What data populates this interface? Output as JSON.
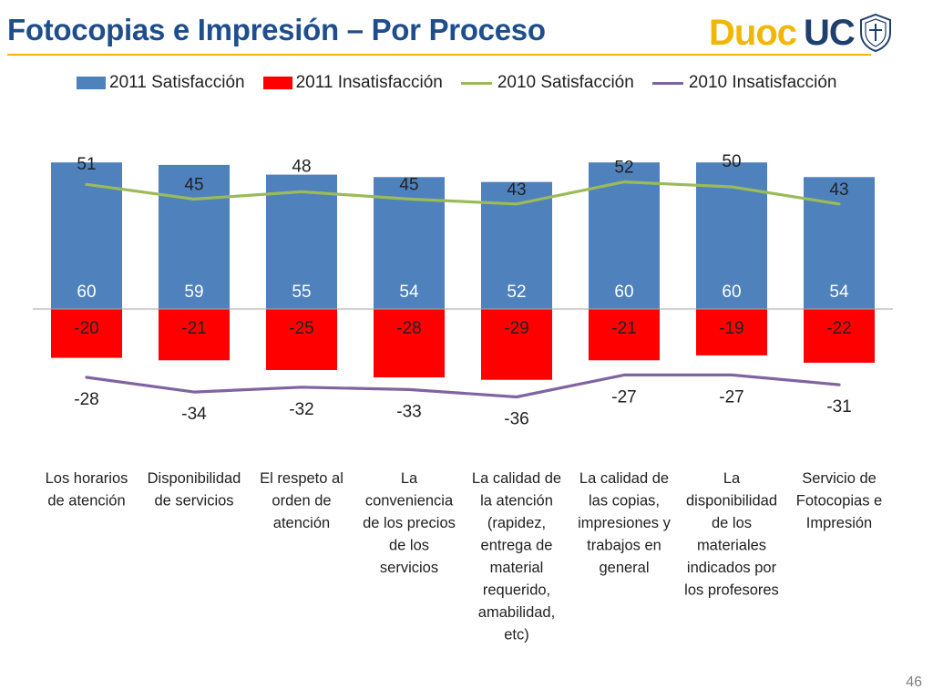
{
  "slide": {
    "title": "Fotocopias e Impresión – Por Proceso",
    "page_number": "46",
    "logo": {
      "text_left": "Duoc",
      "text_right": "UC"
    }
  },
  "colors": {
    "bar_satisfaction_2011": "#4f81bd",
    "bar_dissatisfaction_2011": "#ff0000",
    "line_satisfaction_2010": "#9bbb59",
    "line_dissatisfaction_2010": "#8064a2",
    "title": "#1f4e8c",
    "title_rule": "#f2b705",
    "logo_left": "#f2b705",
    "logo_right": "#1f3f6e"
  },
  "chart_data": {
    "type": "bar",
    "categories": [
      "Los horarios de atención",
      "Disponibilidad de servicios",
      "El respeto al orden de atención",
      "La conveniencia de los precios de los servicios",
      "La calidad de la atención (rapidez, entrega de material requerido, amabilidad, etc)",
      "La calidad de las copias, impresiones y trabajos en general",
      "La disponibilidad de los materiales indicados por los profesores",
      "Servicio de Fotocopias e Impresión"
    ],
    "category_lines": [
      [
        "Los horarios",
        "de atención"
      ],
      [
        "Disponibilidad",
        "de servicios"
      ],
      [
        "El respeto al",
        "orden de",
        "atención"
      ],
      [
        "La",
        "conveniencia",
        "de los precios",
        "de los",
        "servicios"
      ],
      [
        "La calidad de",
        "la atención",
        "(rapidez,",
        "entrega de",
        "material",
        "requerido,",
        "amabilidad,",
        "etc)"
      ],
      [
        "La calidad de",
        "las copias,",
        "impresiones y",
        "trabajos en",
        "general"
      ],
      [
        "La",
        "disponibilidad",
        "de los",
        "materiales",
        "indicados por",
        "los profesores"
      ],
      [
        "Servicio de",
        "Fotocopias e",
        "Impresión"
      ]
    ],
    "series": [
      {
        "name": "2011 Satisfacción",
        "kind": "bar",
        "values": [
          60,
          59,
          55,
          54,
          52,
          60,
          60,
          54
        ]
      },
      {
        "name": "2011 Insatisfacción",
        "kind": "bar",
        "values": [
          -20,
          -21,
          -25,
          -28,
          -29,
          -21,
          -19,
          -22
        ]
      },
      {
        "name": "2010 Satisfacción",
        "kind": "line",
        "values": [
          51,
          45,
          48,
          45,
          43,
          52,
          50,
          43
        ]
      },
      {
        "name": "2010 Insatisfacción",
        "kind": "line",
        "values": [
          -28,
          -34,
          -32,
          -33,
          -36,
          -27,
          -27,
          -31
        ]
      }
    ],
    "ylim": [
      -36,
      60
    ],
    "grid": false,
    "legend_position": "top"
  }
}
